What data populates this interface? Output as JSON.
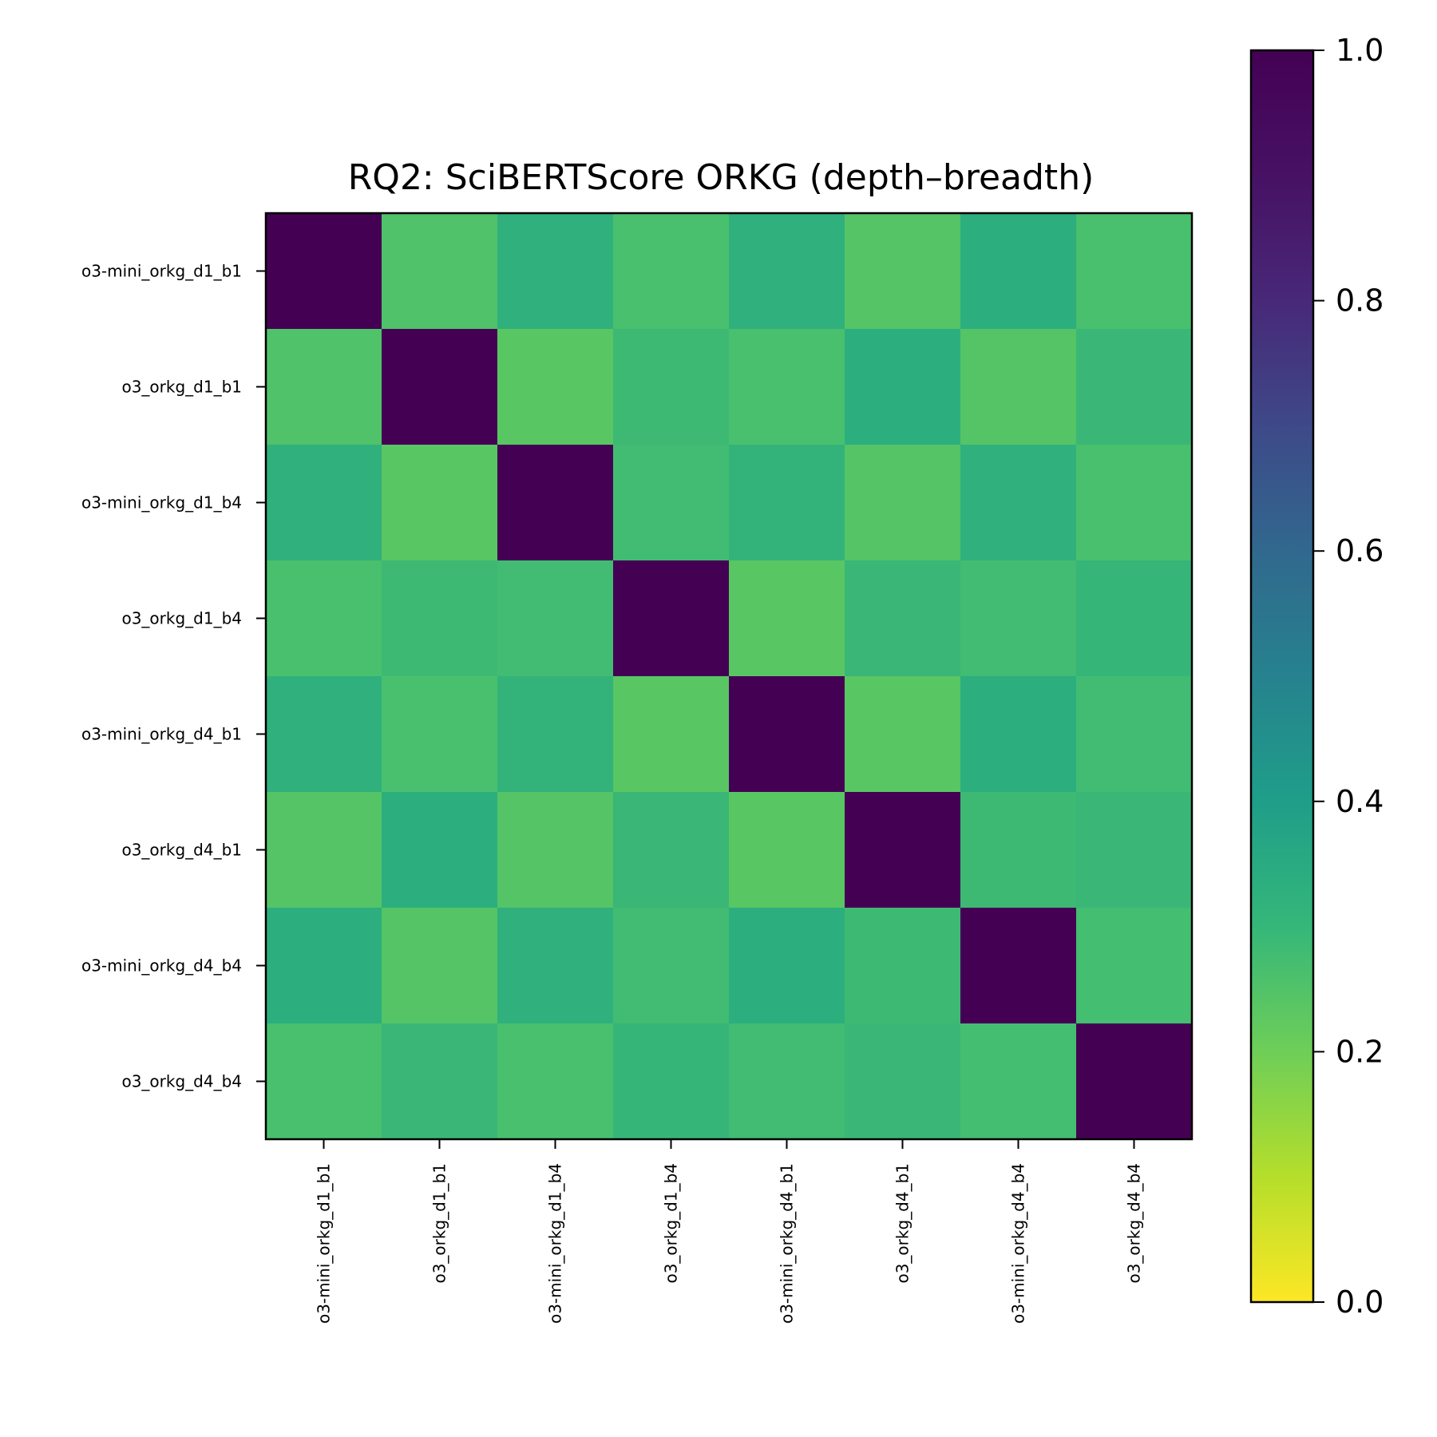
{
  "chart_data": {
    "type": "heatmap",
    "title": "RQ2: SciBERTScore ORKG (depth–breadth)",
    "row_labels": [
      "o3-mini_orkg_d1_b1",
      "o3_orkg_d1_b1",
      "o3-mini_orkg_d1_b4",
      "o3_orkg_d1_b4",
      "o3-mini_orkg_d4_b1",
      "o3_orkg_d4_b1",
      "o3-mini_orkg_d4_b4",
      "o3_orkg_d4_b4"
    ],
    "col_labels": [
      "o3-mini_orkg_d1_b1",
      "o3_orkg_d1_b1",
      "o3-mini_orkg_d1_b4",
      "o3_orkg_d1_b4",
      "o3-mini_orkg_d4_b1",
      "o3_orkg_d4_b1",
      "o3-mini_orkg_d4_b4",
      "o3_orkg_d4_b4"
    ],
    "values": [
      [
        1.0,
        0.28,
        0.36,
        0.29,
        0.36,
        0.27,
        0.37,
        0.29
      ],
      [
        0.28,
        1.0,
        0.26,
        0.32,
        0.29,
        0.37,
        0.27,
        0.33
      ],
      [
        0.36,
        0.26,
        1.0,
        0.31,
        0.35,
        0.27,
        0.36,
        0.29
      ],
      [
        0.29,
        0.32,
        0.31,
        1.0,
        0.26,
        0.33,
        0.31,
        0.34
      ],
      [
        0.36,
        0.29,
        0.35,
        0.26,
        1.0,
        0.26,
        0.37,
        0.31
      ],
      [
        0.27,
        0.37,
        0.27,
        0.33,
        0.26,
        1.0,
        0.32,
        0.33
      ],
      [
        0.37,
        0.27,
        0.36,
        0.31,
        0.37,
        0.32,
        1.0,
        0.3
      ],
      [
        0.29,
        0.33,
        0.29,
        0.34,
        0.31,
        0.33,
        0.3,
        1.0
      ]
    ],
    "colormap": "viridis_r",
    "colorbar": {
      "range": [
        0.0,
        1.0
      ],
      "ticks": [
        "0.0",
        "0.2",
        "0.4",
        "0.6",
        "0.8",
        "1.0"
      ]
    }
  }
}
